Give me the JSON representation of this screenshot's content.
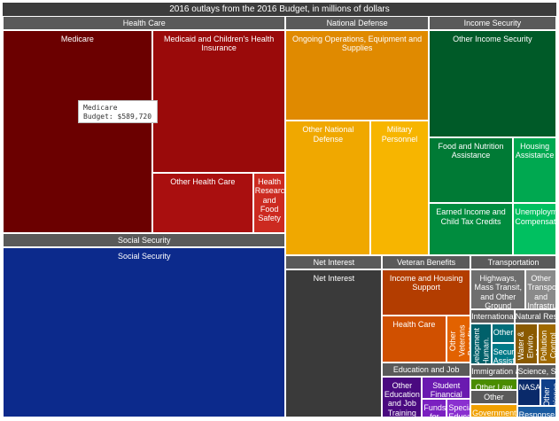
{
  "chart_data": {
    "type": "treemap",
    "title": "2016 outlays from the 2016 Budget, in millions of dollars",
    "groups": [
      {
        "name": "Health Care",
        "children": [
          {
            "name": "Medicare",
            "value": 589720,
            "value_label": "Budget: $589,720",
            "color": "#6b0000"
          },
          {
            "name": "Medicaid and Children's Health Insurance",
            "value": 370000,
            "color": "#9a0a0a"
          },
          {
            "name": "Other Health Care",
            "value": 118000,
            "color": "#a90f0f"
          },
          {
            "name": "Health Research and Food Safety",
            "value": 38000,
            "color": "#cc2a20"
          }
        ]
      },
      {
        "name": "Social Security",
        "children": [
          {
            "name": "Social Security",
            "value": 947000,
            "color": "#0c2a8c"
          }
        ]
      },
      {
        "name": "National Defense",
        "children": [
          {
            "name": "Ongoing Operations, Equipment and Supplies",
            "value": 250000,
            "color": "#e08a00"
          },
          {
            "name": "Other National Defense",
            "value": 220000,
            "color": "#f0a800"
          },
          {
            "name": "Military Personnel",
            "value": 150000,
            "color": "#f7b500"
          }
        ]
      },
      {
        "name": "Income Security",
        "children": [
          {
            "name": "Other Income Security",
            "value": 264000,
            "color": "#005a28"
          },
          {
            "name": "Food and Nutrition Assistance",
            "value": 108000,
            "color": "#007a35"
          },
          {
            "name": "Housing Assistance",
            "value": 55000,
            "color": "#00a850"
          },
          {
            "name": "Earned Income and Child Tax Credits",
            "value": 85000,
            "color": "#008c3e"
          },
          {
            "name": "Unemployment Compensation",
            "value": 43000,
            "color": "#00c060"
          }
        ]
      },
      {
        "name": "Net Interest",
        "children": [
          {
            "name": "Net Interest",
            "value": 284000,
            "color": "#3a3a3a"
          }
        ]
      },
      {
        "name": "Veteran Benefits",
        "children": [
          {
            "name": "Income and Housing Support",
            "value": 85000,
            "color": "#b33d00"
          },
          {
            "name": "Health Care",
            "value": 63000,
            "color": "#d05000"
          },
          {
            "name": "Other Veterans Benefits",
            "value": 24000,
            "color": "#e26200"
          }
        ]
      },
      {
        "name": "Education and Job",
        "children": [
          {
            "name": "Other Education and Job Training",
            "value": 40000,
            "color": "#4a0a80"
          },
          {
            "name": "Student Financial Aid",
            "value": 26000,
            "color": "#6a1ab0"
          },
          {
            "name": "Funds for States",
            "value": 11500,
            "color": "#7a20c0"
          },
          {
            "name": "Special Education",
            "value": 11000,
            "color": "#8a30d0"
          }
        ]
      },
      {
        "name": "Transportation",
        "children": [
          {
            "name": "Highways, Mass Transit, and Other Ground Transportation",
            "value": 54000,
            "color": "#6e6e6e"
          },
          {
            "name": "Other Transportation and Infrastructure",
            "value": 30000,
            "color": "#8a8a8a"
          }
        ]
      },
      {
        "name": "International",
        "children": [
          {
            "name": "Development Human. Assist",
            "value": 21000,
            "color": "#00606a"
          },
          {
            "name": "Other",
            "value": 11000,
            "color": "#006e7a"
          },
          {
            "name": "Security Assist.",
            "value": 12000,
            "color": "#007a88"
          }
        ]
      },
      {
        "name": "Natural Resources",
        "children": [
          {
            "name": "Water & Enviro. Mgmt",
            "value": 23000,
            "color": "#8a5a00"
          },
          {
            "name": "Pollution Control",
            "value": 19000,
            "color": "#a06a00"
          }
        ]
      },
      {
        "name": "Immigration and Law Enforcement",
        "children": [
          {
            "name": "Other Law enforcement",
            "value": 22000,
            "color": "#4a8c00"
          }
        ]
      },
      {
        "name": "Other",
        "children": [
          {
            "name": "Government Programs",
            "value": 23000,
            "color": "#f0a000"
          }
        ]
      },
      {
        "name": "Science, Space and Technology",
        "children": [
          {
            "name": "NASA",
            "value": 16000,
            "color": "#0a2a6a"
          },
          {
            "name": "Other Science",
            "value": 11000,
            "color": "#10408a"
          },
          {
            "name": "Response to Natural Disasters",
            "value": 11000,
            "color": "#1a5aa0"
          }
        ]
      }
    ]
  }
}
